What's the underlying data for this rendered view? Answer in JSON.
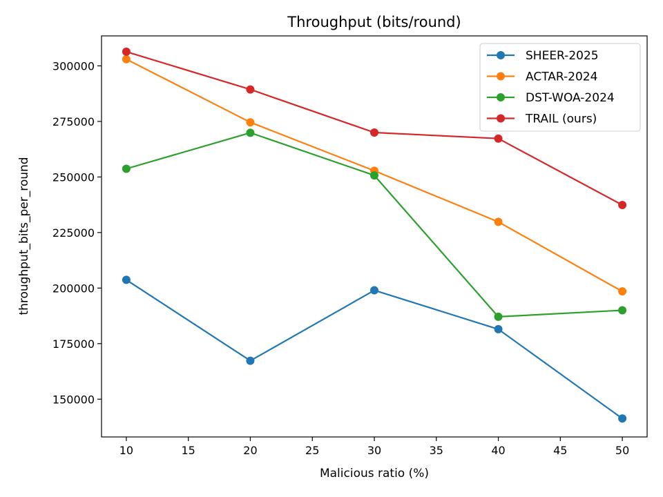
{
  "chart_data": {
    "type": "line",
    "title": "Throughput (bits/round)",
    "xlabel": "Malicious ratio (%)",
    "ylabel": "throughput_bits_per_round",
    "xlim": [
      8.0,
      52.0
    ],
    "ylim": [
      133000,
      313500
    ],
    "xticks": [
      10,
      15,
      20,
      25,
      30,
      35,
      40,
      45,
      50
    ],
    "yticks": [
      150000,
      175000,
      200000,
      225000,
      250000,
      275000,
      300000
    ],
    "x": [
      10,
      20,
      30,
      40,
      50
    ],
    "grid": false,
    "legend_position": "upper right",
    "series": [
      {
        "name": "SHEER-2025",
        "color": "#1f77b4",
        "values": [
          203700,
          167300,
          199000,
          181500,
          141300
        ]
      },
      {
        "name": "ACTAR-2024",
        "color": "#ff7f0e",
        "values": [
          303000,
          274600,
          252800,
          229800,
          198500
        ]
      },
      {
        "name": "DST-WOA-2024",
        "color": "#2ca02c",
        "values": [
          253700,
          269900,
          250700,
          187100,
          190000
        ]
      },
      {
        "name": "TRAIL (ours)",
        "color": "#d62728",
        "values": [
          306400,
          289400,
          270000,
          267300,
          237400
        ]
      }
    ]
  }
}
